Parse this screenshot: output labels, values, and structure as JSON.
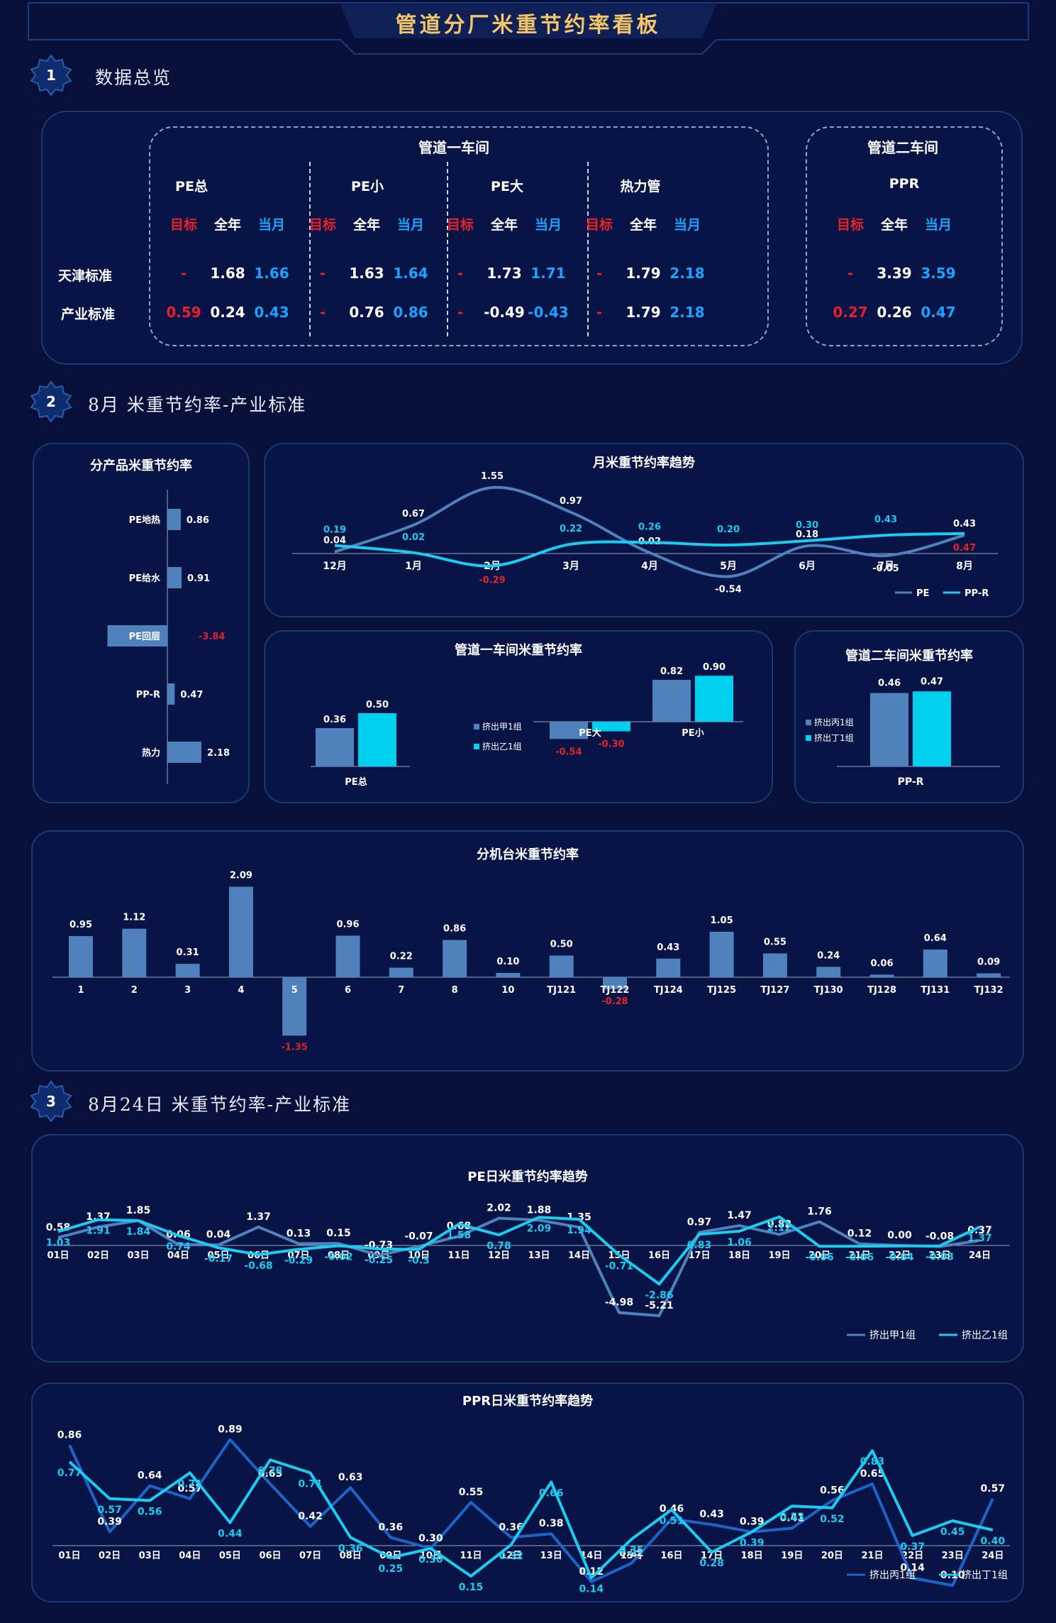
{
  "page": {
    "title": "管道分厂米重节约率看板"
  },
  "sections": [
    {
      "num": "1",
      "title": "数据总览"
    },
    {
      "num": "2",
      "title": "8月 米重节约率-产业标准"
    },
    {
      "num": "3",
      "title": "8月24日 米重节约率-产业标准"
    }
  ],
  "overview": {
    "workshop1": "管道一车间",
    "workshop2": "管道二车间",
    "row_labels": [
      "天津标准",
      "产业标准"
    ],
    "col_heads": [
      "目标",
      "全年",
      "当月"
    ],
    "groups": [
      {
        "name": "PE总",
        "rows": [
          [
            "-",
            "1.68",
            "1.66"
          ],
          [
            "0.59",
            "0.24",
            "0.43"
          ]
        ]
      },
      {
        "name": "PE小",
        "rows": [
          [
            "-",
            "1.63",
            "1.64"
          ],
          [
            "-",
            "0.76",
            "0.86"
          ]
        ]
      },
      {
        "name": "PE大",
        "rows": [
          [
            "-",
            "1.73",
            "1.71"
          ],
          [
            "-",
            "-0.49",
            "-0.43"
          ]
        ]
      },
      {
        "name": "热力管",
        "rows": [
          [
            "-",
            "1.79",
            "2.18"
          ],
          [
            "-",
            "1.79",
            "2.18"
          ]
        ]
      },
      {
        "name": "PPR",
        "rows": [
          [
            "-",
            "3.39",
            "3.59"
          ],
          [
            "0.27",
            "0.26",
            "0.47"
          ]
        ]
      }
    ]
  },
  "chart_data": [
    {
      "id": "product",
      "type": "bar",
      "orientation": "horizontal",
      "title": "分产品米重节约率",
      "categories": [
        "PE地热",
        "PE给水",
        "PE回层",
        "PP-R",
        "热力"
      ],
      "values": [
        0.86,
        0.91,
        -3.84,
        0.47,
        2.18
      ],
      "value_labels": [
        "0.86",
        "0.91",
        "-3.84",
        "0.47",
        "2.18"
      ],
      "colors": {
        "bar": "#4f81bd",
        "negative_label": "#e5222a"
      }
    },
    {
      "id": "monthly",
      "type": "line",
      "title": "月米重节约率趋势",
      "categories": [
        "12月",
        "1月",
        "2月",
        "3月",
        "4月",
        "5月",
        "6月",
        "7月",
        "8月"
      ],
      "series": [
        {
          "name": "PE",
          "values": [
            0.04,
            0.67,
            1.55,
            0.97,
            0.02,
            -0.54,
            0.18,
            -0.05,
            0.43
          ],
          "color": "#4f81bd"
        },
        {
          "name": "PP-R",
          "values": [
            0.19,
            0.02,
            -0.29,
            0.22,
            0.26,
            0.2,
            0.3,
            0.43,
            0.47
          ],
          "color": "#1ccbf0"
        }
      ],
      "value_labels": {
        "PE": [
          "0.04",
          "0.67",
          "1.55",
          "0.97",
          "0.02",
          "-0.54",
          "0.18",
          "-0.05",
          "0.43"
        ],
        "PP-R": [
          "0.19",
          "0.02",
          "-0.29",
          "0.22",
          "0.26",
          "0.20",
          "0.30",
          "0.43",
          "0.47"
        ]
      }
    },
    {
      "id": "ws1",
      "type": "bar",
      "title": "管道一车间米重节约率",
      "categories": [
        "PE总",
        "PE大",
        "PE小"
      ],
      "series": [
        {
          "name": "挤出甲1组",
          "values": [
            0.36,
            -0.54,
            0.82
          ],
          "color": "#4f81bd"
        },
        {
          "name": "挤出乙1组",
          "values": [
            0.5,
            -0.3,
            0.9
          ],
          "color": "#00d0f0"
        }
      ],
      "value_labels": {
        "挤出甲1组": [
          "0.36",
          "-0.54",
          "0.82"
        ],
        "挤出乙1组": [
          "0.50",
          "-0.30",
          "0.90"
        ]
      }
    },
    {
      "id": "ws2",
      "type": "bar",
      "title": "管道二车间米重节约率",
      "categories": [
        "PP-R"
      ],
      "series": [
        {
          "name": "挤出丙1组",
          "values": [
            0.46
          ],
          "color": "#4f81bd"
        },
        {
          "name": "挤出丁1组",
          "values": [
            0.47
          ],
          "color": "#00d0f0"
        }
      ],
      "value_labels": {
        "挤出丙1组": [
          "0.46"
        ],
        "挤出丁1组": [
          "0.47"
        ]
      }
    },
    {
      "id": "machines",
      "type": "bar",
      "title": "分机台米重节约率",
      "categories": [
        "1",
        "2",
        "3",
        "4",
        "5",
        "6",
        "7",
        "8",
        "10",
        "TJ121",
        "TJ122",
        "TJ124",
        "TJ125",
        "TJ127",
        "TJ130",
        "TJ128",
        "TJ131",
        "TJ132"
      ],
      "values": [
        0.95,
        1.12,
        0.31,
        2.09,
        -1.35,
        0.96,
        0.22,
        0.86,
        0.1,
        0.5,
        -0.28,
        0.43,
        1.05,
        0.55,
        0.24,
        0.06,
        0.64,
        0.09
      ],
      "value_labels": [
        "0.95",
        "1.12",
        "0.31",
        "2.09",
        "-1.35",
        "0.96",
        "0.22",
        "0.86",
        "0.10",
        "0.50",
        "-0.28",
        "0.43",
        "1.05",
        "0.55",
        "0.24",
        "0.06",
        "0.64",
        "0.09"
      ],
      "colors": {
        "bar": "#4f81bd"
      }
    },
    {
      "id": "pe_daily",
      "type": "line",
      "title": "PE日米重节约率趋势",
      "categories": [
        "01日",
        "02日",
        "03日",
        "04日",
        "05日",
        "06日",
        "07日",
        "08日",
        "09日",
        "10日",
        "11日",
        "12日",
        "13日",
        "14日",
        "15日",
        "16日",
        "17日",
        "18日",
        "19日",
        "20日",
        "21日",
        "22日",
        "23日",
        "24日"
      ],
      "series": [
        {
          "name": "挤出甲1组",
          "values": [
            0.58,
            1.37,
            1.85,
            0.06,
            0.04,
            1.37,
            0.13,
            0.15,
            -0.73,
            -0.07,
            0.68,
            2.02,
            1.88,
            1.35,
            -4.98,
            -5.21,
            0.97,
            1.47,
            0.82,
            1.76,
            0.12,
            0.0,
            -0.08,
            0.37
          ],
          "color": "#4f81bd"
        },
        {
          "name": "挤出乙1组",
          "values": [
            1.03,
            1.91,
            1.84,
            0.74,
            -0.17,
            -0.68,
            -0.29,
            -0.02,
            -0.25,
            -0.3,
            1.58,
            0.78,
            2.09,
            1.94,
            -0.71,
            -2.86,
            0.83,
            1.06,
            2.12,
            -0.06,
            -0.06,
            -0.04,
            -0.03,
            1.37
          ],
          "color": "#1ccbf0"
        }
      ],
      "value_labels": {
        "挤出甲1组": [
          "0.58",
          "1.37",
          "1.85",
          "0.06",
          "0.04",
          "1.37",
          "0.13",
          "0.15",
          "-0.73",
          "-0.07",
          "0.68",
          "2.02",
          "1.88",
          "1.35",
          "-4.98",
          "-5.21",
          "0.97",
          "1.47",
          "0.82",
          "1.76",
          "0.12",
          "0.00",
          "-0.08",
          "0.37"
        ],
        "挤出乙1组": [
          "1.03",
          "1.91",
          "1.84",
          "0.74",
          "-0.17",
          "-0.68",
          "-0.29",
          "-0.02",
          "-0.25",
          "-0.3",
          "1.58",
          "0.78",
          "2.09",
          "1.94",
          "-0.71",
          "-2.86",
          "0.83",
          "1.06",
          "2.12",
          "-0.06",
          "-0.06",
          "-0.04",
          "-0.03",
          "1.37"
        ]
      }
    },
    {
      "id": "ppr_daily",
      "type": "line",
      "title": "PPR日米重节约率趋势",
      "categories": [
        "01日",
        "02日",
        "03日",
        "04日",
        "05日",
        "06日",
        "07日",
        "08日",
        "09日",
        "10日",
        "11日",
        "12日",
        "13日",
        "14日",
        "15日",
        "16日",
        "17日",
        "18日",
        "19日",
        "20日",
        "21日",
        "22日",
        "23日",
        "24日"
      ],
      "series": [
        {
          "name": "挤出丙1组",
          "values": [
            0.86,
            0.39,
            0.64,
            0.57,
            0.89,
            0.65,
            0.42,
            0.63,
            0.36,
            0.3,
            0.55,
            0.36,
            0.38,
            0.12,
            0.22,
            0.46,
            0.43,
            0.39,
            0.41,
            0.56,
            0.65,
            0.14,
            0.1,
            0.57
          ],
          "color": "#1d64c8"
        },
        {
          "name": "挤出丁1组",
          "values": [
            0.77,
            0.57,
            0.56,
            0.71,
            0.44,
            0.78,
            0.71,
            0.36,
            0.25,
            0.3,
            0.15,
            0.32,
            0.66,
            0.14,
            0.35,
            0.51,
            0.28,
            0.39,
            0.53,
            0.52,
            0.83,
            0.37,
            0.45,
            0.4
          ],
          "color": "#1ccbf0"
        }
      ],
      "value_labels": {
        "挤出丙1组": [
          "0.86",
          "0.39",
          "0.64",
          "0.57",
          "0.89",
          "0.65",
          "0.42",
          "0.63",
          "0.36",
          "0.30",
          "0.55",
          "0.36",
          "0.38",
          "0.12",
          "0.22",
          "0.46",
          "0.43",
          "0.39",
          "0.41",
          "0.56",
          "0.65",
          "0.14",
          "0.10",
          "0.57"
        ],
        "挤出丁1组": [
          "0.77",
          "0.57",
          "0.56",
          "0.71",
          "0.44",
          "0.78",
          "0.71",
          "0.36",
          "0.25",
          "0.30",
          "0.15",
          "0.32",
          "0.66",
          "0.14",
          "0.35",
          "0.51",
          "0.28",
          "0.39",
          "0.53",
          "0.52",
          "0.83",
          "0.37",
          "0.45",
          "0.40"
        ]
      }
    }
  ]
}
